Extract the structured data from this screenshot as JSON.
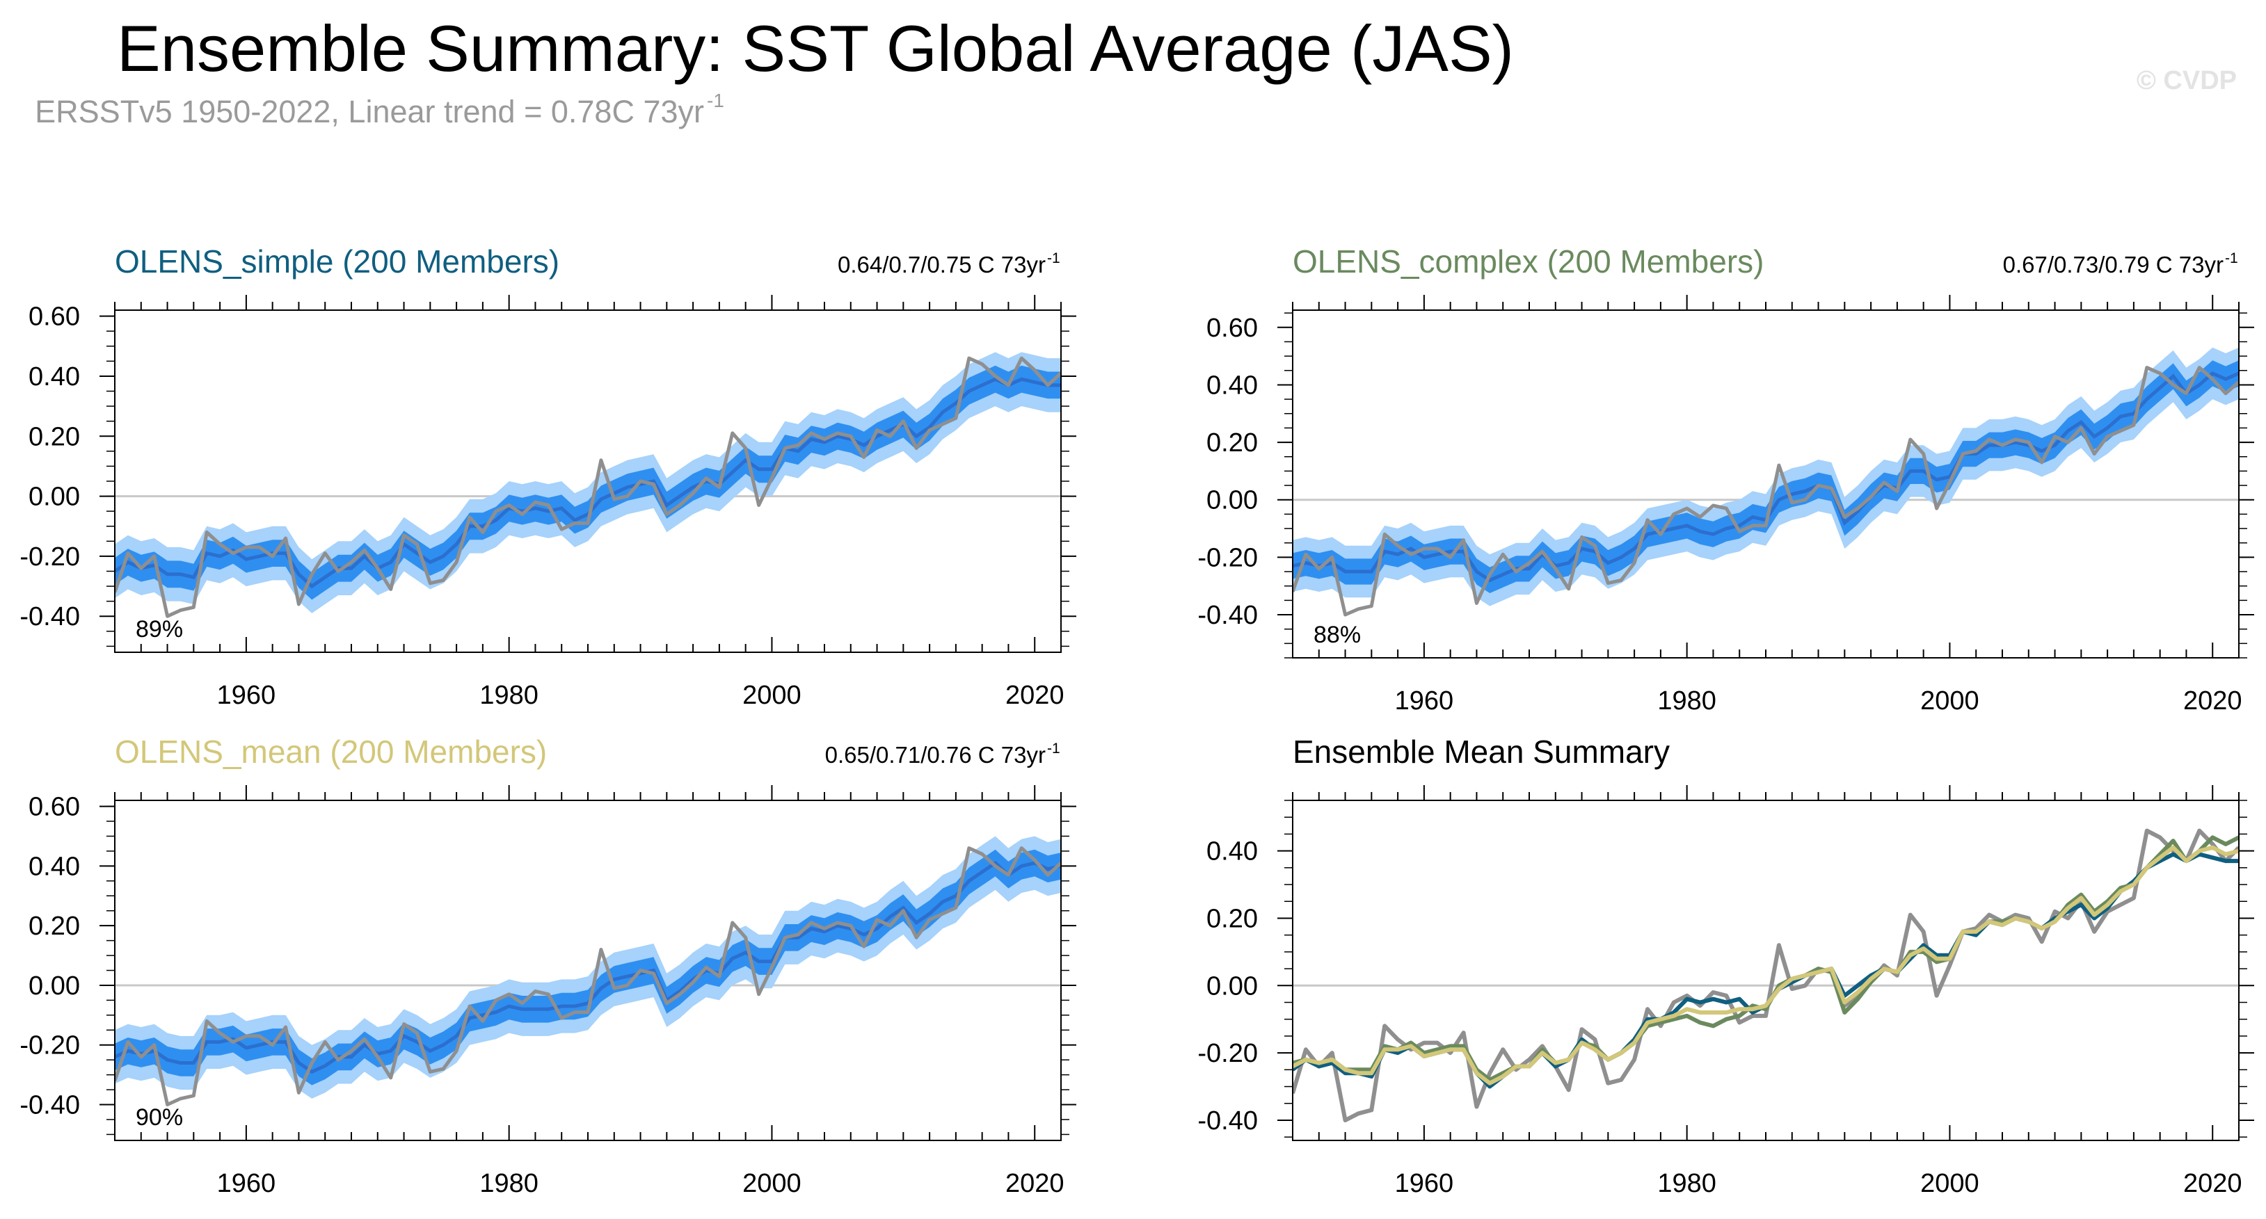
{
  "figure": {
    "title": "Ensemble Summary: SST Global Average (JAS)",
    "subtitle_main": "ERSSTv5 1950-2022, Linear trend = 0.78C 73yr",
    "subtitle_sup": "-1",
    "watermark": "© CVDP"
  },
  "colors": {
    "band_outer": "#a6d2fb",
    "band_inner": "#2f8ff0",
    "ens_mean": "#2b6fcf",
    "observed": "#8f8f8f",
    "zero_line": "#c8c8c8",
    "simple": "#0f5f80",
    "complex": "#6a8a5e",
    "mean": "#d3c779"
  },
  "chart_data": [
    {
      "type": "area",
      "title": "OLENS_simple (200 Members)",
      "title_color": "#0f5f80",
      "trend_label": "0.64/0.7/0.75 C 73yr",
      "trend_sup": "-1",
      "percent_label": "89%",
      "x_ticks": [
        1960,
        1980,
        2000,
        2020
      ],
      "y_ticks": [
        "0.60",
        "0.40",
        "0.20",
        "0.00",
        "-0.20",
        "-0.40"
      ],
      "xlim": [
        1950,
        2022
      ],
      "ylim": [
        -0.52,
        0.62
      ],
      "ens_mean": [
        -0.25,
        -0.22,
        -0.24,
        -0.23,
        -0.26,
        -0.26,
        -0.27,
        -0.19,
        -0.2,
        -0.18,
        -0.21,
        -0.2,
        -0.19,
        -0.19,
        -0.26,
        -0.3,
        -0.27,
        -0.24,
        -0.24,
        -0.2,
        -0.24,
        -0.22,
        -0.16,
        -0.19,
        -0.22,
        -0.2,
        -0.16,
        -0.1,
        -0.1,
        -0.08,
        -0.04,
        -0.05,
        -0.04,
        -0.05,
        -0.04,
        -0.08,
        -0.06,
        -0.01,
        0.01,
        0.03,
        0.04,
        0.05,
        -0.03,
        0.0,
        0.03,
        0.05,
        0.04,
        0.08,
        0.12,
        0.09,
        0.09,
        0.16,
        0.15,
        0.19,
        0.18,
        0.2,
        0.19,
        0.17,
        0.2,
        0.22,
        0.24,
        0.2,
        0.23,
        0.28,
        0.31,
        0.35,
        0.37,
        0.39,
        0.37,
        0.39,
        0.38,
        0.37,
        0.37
      ],
      "ens_inner_half": 0.045,
      "ens_outer_half": 0.09,
      "observed": [
        -0.32,
        -0.19,
        -0.24,
        -0.2,
        -0.4,
        -0.38,
        -0.37,
        -0.12,
        -0.16,
        -0.19,
        -0.17,
        -0.17,
        -0.2,
        -0.14,
        -0.36,
        -0.26,
        -0.19,
        -0.25,
        -0.22,
        -0.18,
        -0.24,
        -0.31,
        -0.13,
        -0.16,
        -0.29,
        -0.28,
        -0.22,
        -0.07,
        -0.12,
        -0.05,
        -0.03,
        -0.06,
        -0.02,
        -0.03,
        -0.11,
        -0.09,
        -0.09,
        0.12,
        -0.01,
        0.0,
        0.05,
        0.04,
        -0.06,
        -0.03,
        0.01,
        0.06,
        0.03,
        0.21,
        0.16,
        -0.03,
        0.06,
        0.16,
        0.17,
        0.21,
        0.19,
        0.21,
        0.2,
        0.13,
        0.22,
        0.2,
        0.25,
        0.16,
        0.22,
        0.24,
        0.26,
        0.46,
        0.44,
        0.4,
        0.37,
        0.46,
        0.42,
        0.37,
        0.41
      ]
    },
    {
      "type": "area",
      "title": "OLENS_complex (200 Members)",
      "title_color": "#6a8a5e",
      "trend_label": "0.67/0.73/0.79 C 73yr",
      "trend_sup": "-1",
      "percent_label": "88%",
      "x_ticks": [
        1960,
        1980,
        2000,
        2020
      ],
      "y_ticks": [
        "0.60",
        "0.40",
        "0.20",
        "0.00",
        "-0.20",
        "-0.40"
      ],
      "xlim": [
        1950,
        2022
      ],
      "ylim": [
        -0.55,
        0.66
      ],
      "ens_mean": [
        -0.23,
        -0.22,
        -0.23,
        -0.22,
        -0.25,
        -0.25,
        -0.25,
        -0.18,
        -0.19,
        -0.17,
        -0.2,
        -0.19,
        -0.18,
        -0.18,
        -0.25,
        -0.28,
        -0.26,
        -0.24,
        -0.24,
        -0.19,
        -0.23,
        -0.22,
        -0.17,
        -0.18,
        -0.22,
        -0.2,
        -0.17,
        -0.12,
        -0.11,
        -0.1,
        -0.09,
        -0.11,
        -0.12,
        -0.1,
        -0.09,
        -0.06,
        -0.07,
        0.0,
        0.02,
        0.03,
        0.05,
        0.04,
        -0.08,
        -0.04,
        0.01,
        0.05,
        0.04,
        0.1,
        0.1,
        0.07,
        0.08,
        0.16,
        0.16,
        0.19,
        0.19,
        0.2,
        0.19,
        0.17,
        0.19,
        0.24,
        0.27,
        0.22,
        0.25,
        0.29,
        0.3,
        0.35,
        0.39,
        0.43,
        0.37,
        0.4,
        0.44,
        0.42,
        0.44
      ],
      "ens_inner_half": 0.045,
      "ens_outer_half": 0.09,
      "observed": [
        -0.32,
        -0.19,
        -0.24,
        -0.2,
        -0.4,
        -0.38,
        -0.37,
        -0.12,
        -0.16,
        -0.19,
        -0.17,
        -0.17,
        -0.2,
        -0.14,
        -0.36,
        -0.26,
        -0.19,
        -0.25,
        -0.22,
        -0.18,
        -0.24,
        -0.31,
        -0.13,
        -0.16,
        -0.29,
        -0.28,
        -0.22,
        -0.07,
        -0.12,
        -0.05,
        -0.03,
        -0.06,
        -0.02,
        -0.03,
        -0.11,
        -0.09,
        -0.09,
        0.12,
        -0.01,
        0.0,
        0.05,
        0.04,
        -0.06,
        -0.03,
        0.01,
        0.06,
        0.03,
        0.21,
        0.16,
        -0.03,
        0.06,
        0.16,
        0.17,
        0.21,
        0.19,
        0.21,
        0.2,
        0.13,
        0.22,
        0.2,
        0.25,
        0.16,
        0.22,
        0.24,
        0.26,
        0.46,
        0.44,
        0.4,
        0.37,
        0.46,
        0.42,
        0.37,
        0.41
      ]
    },
    {
      "type": "area",
      "title": "OLENS_mean (200 Members)",
      "title_color": "#d3c779",
      "trend_label": "0.65/0.71/0.76 C 73yr",
      "trend_sup": "-1",
      "percent_label": "90%",
      "x_ticks": [
        1960,
        1980,
        2000,
        2020
      ],
      "y_ticks": [
        "0.60",
        "0.40",
        "0.20",
        "0.00",
        "-0.20",
        "-0.40"
      ],
      "xlim": [
        1950,
        2022
      ],
      "ylim": [
        -0.52,
        0.62
      ],
      "ens_mean": [
        -0.24,
        -0.22,
        -0.23,
        -0.22,
        -0.25,
        -0.26,
        -0.26,
        -0.19,
        -0.19,
        -0.18,
        -0.21,
        -0.2,
        -0.19,
        -0.19,
        -0.26,
        -0.29,
        -0.27,
        -0.24,
        -0.24,
        -0.2,
        -0.23,
        -0.22,
        -0.17,
        -0.19,
        -0.22,
        -0.2,
        -0.17,
        -0.11,
        -0.1,
        -0.09,
        -0.07,
        -0.08,
        -0.08,
        -0.08,
        -0.07,
        -0.07,
        -0.06,
        -0.01,
        0.02,
        0.03,
        0.04,
        0.05,
        -0.05,
        -0.02,
        0.02,
        0.05,
        0.04,
        0.09,
        0.11,
        0.08,
        0.08,
        0.16,
        0.16,
        0.19,
        0.18,
        0.2,
        0.19,
        0.17,
        0.19,
        0.23,
        0.26,
        0.21,
        0.24,
        0.28,
        0.3,
        0.35,
        0.38,
        0.41,
        0.37,
        0.4,
        0.41,
        0.39,
        0.4
      ],
      "ens_inner_half": 0.045,
      "ens_outer_half": 0.09,
      "observed": [
        -0.32,
        -0.19,
        -0.24,
        -0.2,
        -0.4,
        -0.38,
        -0.37,
        -0.12,
        -0.16,
        -0.19,
        -0.17,
        -0.17,
        -0.2,
        -0.14,
        -0.36,
        -0.26,
        -0.19,
        -0.25,
        -0.22,
        -0.18,
        -0.24,
        -0.31,
        -0.13,
        -0.16,
        -0.29,
        -0.28,
        -0.22,
        -0.07,
        -0.12,
        -0.05,
        -0.03,
        -0.06,
        -0.02,
        -0.03,
        -0.11,
        -0.09,
        -0.09,
        0.12,
        -0.01,
        0.0,
        0.05,
        0.04,
        -0.06,
        -0.03,
        0.01,
        0.06,
        0.03,
        0.21,
        0.16,
        -0.03,
        0.06,
        0.16,
        0.17,
        0.21,
        0.19,
        0.21,
        0.2,
        0.13,
        0.22,
        0.2,
        0.25,
        0.16,
        0.22,
        0.24,
        0.26,
        0.46,
        0.44,
        0.4,
        0.37,
        0.46,
        0.42,
        0.37,
        0.41
      ]
    },
    {
      "type": "line",
      "title": "Ensemble Mean Summary",
      "title_color": "#000000",
      "x_ticks": [
        1960,
        1980,
        2000,
        2020
      ],
      "y_ticks": [
        "0.40",
        "0.20",
        "0.00",
        "-0.20",
        "-0.40"
      ],
      "xlim": [
        1950,
        2022
      ],
      "ylim": [
        -0.46,
        0.55
      ],
      "x_start": 1950,
      "series": [
        {
          "ref": "simple",
          "color": "#0f5f80",
          "values": [
            -0.25,
            -0.22,
            -0.24,
            -0.23,
            -0.26,
            -0.26,
            -0.27,
            -0.19,
            -0.2,
            -0.18,
            -0.21,
            -0.2,
            -0.19,
            -0.19,
            -0.26,
            -0.3,
            -0.27,
            -0.24,
            -0.24,
            -0.2,
            -0.24,
            -0.22,
            -0.16,
            -0.19,
            -0.22,
            -0.2,
            -0.16,
            -0.1,
            -0.1,
            -0.08,
            -0.04,
            -0.05,
            -0.04,
            -0.05,
            -0.04,
            -0.08,
            -0.06,
            -0.01,
            0.01,
            0.03,
            0.04,
            0.05,
            -0.03,
            0.0,
            0.03,
            0.05,
            0.04,
            0.08,
            0.12,
            0.09,
            0.09,
            0.16,
            0.15,
            0.19,
            0.18,
            0.2,
            0.19,
            0.17,
            0.2,
            0.22,
            0.24,
            0.2,
            0.23,
            0.28,
            0.31,
            0.35,
            0.37,
            0.39,
            0.37,
            0.39,
            0.38,
            0.37,
            0.37
          ]
        },
        {
          "ref": "complex",
          "color": "#6a8a5e",
          "values": [
            -0.23,
            -0.22,
            -0.23,
            -0.22,
            -0.25,
            -0.25,
            -0.25,
            -0.18,
            -0.19,
            -0.17,
            -0.2,
            -0.19,
            -0.18,
            -0.18,
            -0.25,
            -0.28,
            -0.26,
            -0.24,
            -0.24,
            -0.19,
            -0.23,
            -0.22,
            -0.17,
            -0.18,
            -0.22,
            -0.2,
            -0.17,
            -0.12,
            -0.11,
            -0.1,
            -0.09,
            -0.11,
            -0.12,
            -0.1,
            -0.09,
            -0.06,
            -0.07,
            0.0,
            0.02,
            0.03,
            0.05,
            0.04,
            -0.08,
            -0.04,
            0.01,
            0.05,
            0.04,
            0.1,
            0.1,
            0.07,
            0.08,
            0.16,
            0.16,
            0.19,
            0.19,
            0.2,
            0.19,
            0.17,
            0.19,
            0.24,
            0.27,
            0.22,
            0.25,
            0.29,
            0.3,
            0.35,
            0.39,
            0.43,
            0.37,
            0.4,
            0.44,
            0.42,
            0.44
          ]
        },
        {
          "ref": "mean",
          "color": "#d3c779",
          "values": [
            -0.24,
            -0.22,
            -0.23,
            -0.22,
            -0.25,
            -0.26,
            -0.26,
            -0.19,
            -0.19,
            -0.18,
            -0.21,
            -0.2,
            -0.19,
            -0.19,
            -0.26,
            -0.29,
            -0.27,
            -0.24,
            -0.24,
            -0.2,
            -0.23,
            -0.22,
            -0.17,
            -0.19,
            -0.22,
            -0.2,
            -0.17,
            -0.11,
            -0.1,
            -0.09,
            -0.07,
            -0.08,
            -0.08,
            -0.08,
            -0.07,
            -0.07,
            -0.06,
            -0.01,
            0.02,
            0.03,
            0.04,
            0.05,
            -0.05,
            -0.02,
            0.02,
            0.05,
            0.04,
            0.09,
            0.11,
            0.08,
            0.08,
            0.16,
            0.16,
            0.19,
            0.18,
            0.2,
            0.19,
            0.17,
            0.19,
            0.23,
            0.26,
            0.21,
            0.24,
            0.28,
            0.3,
            0.35,
            0.38,
            0.41,
            0.37,
            0.4,
            0.41,
            0.39,
            0.4
          ]
        },
        {
          "ref": "observed",
          "color": "#8f8f8f",
          "values": [
            -0.32,
            -0.19,
            -0.24,
            -0.2,
            -0.4,
            -0.38,
            -0.37,
            -0.12,
            -0.16,
            -0.19,
            -0.17,
            -0.17,
            -0.2,
            -0.14,
            -0.36,
            -0.26,
            -0.19,
            -0.25,
            -0.22,
            -0.18,
            -0.24,
            -0.31,
            -0.13,
            -0.16,
            -0.29,
            -0.28,
            -0.22,
            -0.07,
            -0.12,
            -0.05,
            -0.03,
            -0.06,
            -0.02,
            -0.03,
            -0.11,
            -0.09,
            -0.09,
            0.12,
            -0.01,
            0.0,
            0.05,
            0.04,
            -0.06,
            -0.03,
            0.01,
            0.06,
            0.03,
            0.21,
            0.16,
            -0.03,
            0.06,
            0.16,
            0.17,
            0.21,
            0.19,
            0.21,
            0.2,
            0.13,
            0.22,
            0.2,
            0.25,
            0.16,
            0.22,
            0.24,
            0.26,
            0.46,
            0.44,
            0.4,
            0.37,
            0.46,
            0.42,
            0.37,
            0.41
          ]
        }
      ]
    }
  ]
}
